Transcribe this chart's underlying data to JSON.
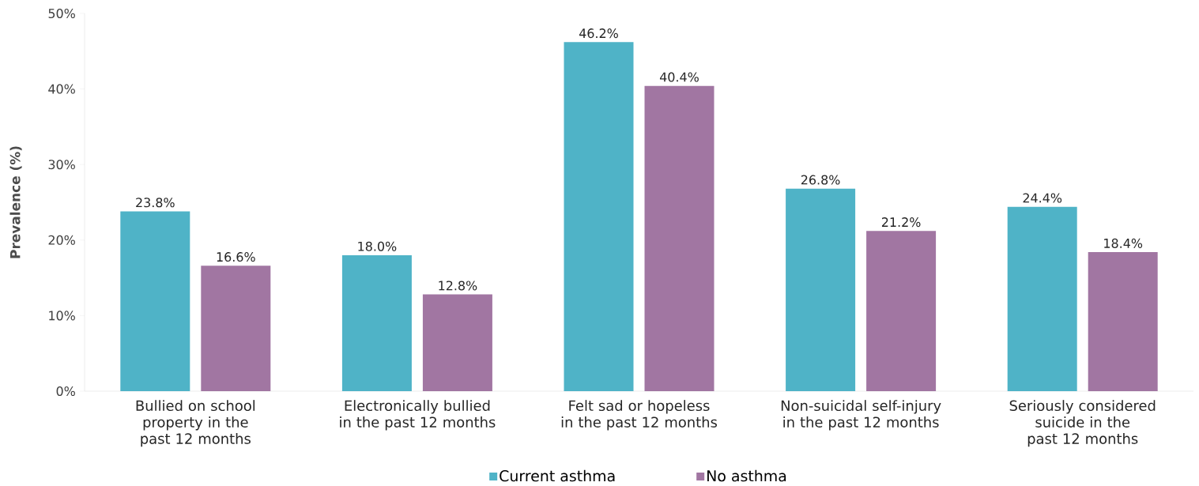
{
  "chart_data": {
    "type": "bar",
    "ylabel": "Prevalence (%)",
    "categories": [
      "Bullied on school property in the past 12 months",
      "Electronically bullied in the past 12 months",
      "Felt sad or hopeless in the past 12 months",
      "Non-suicidal self-injury in the past 12 months",
      "Seriously considered suicide in the past 12 months"
    ],
    "series": [
      {
        "name": "Current asthma",
        "color": "#4fb3c7",
        "values": [
          23.8,
          18.0,
          46.2,
          26.8,
          24.4
        ],
        "value_labels": [
          "23.8%",
          "18.0%",
          "46.2%",
          "26.8%",
          "24.4%"
        ]
      },
      {
        "name": "No asthma",
        "color": "#a176a2",
        "values": [
          16.6,
          12.8,
          40.4,
          21.2,
          18.4
        ],
        "value_labels": [
          "16.6%",
          "12.8%",
          "40.4%",
          "21.2%",
          "18.4%"
        ]
      }
    ],
    "ylim": [
      0,
      50
    ],
    "yticks": [
      {
        "value": 0,
        "label": "0%"
      },
      {
        "value": 10,
        "label": "10%"
      },
      {
        "value": 20,
        "label": "20%"
      },
      {
        "value": 30,
        "label": "30%"
      },
      {
        "value": 40,
        "label": "40%"
      },
      {
        "value": 50,
        "label": "50%"
      }
    ],
    "grid": false,
    "legend": "bottom"
  }
}
